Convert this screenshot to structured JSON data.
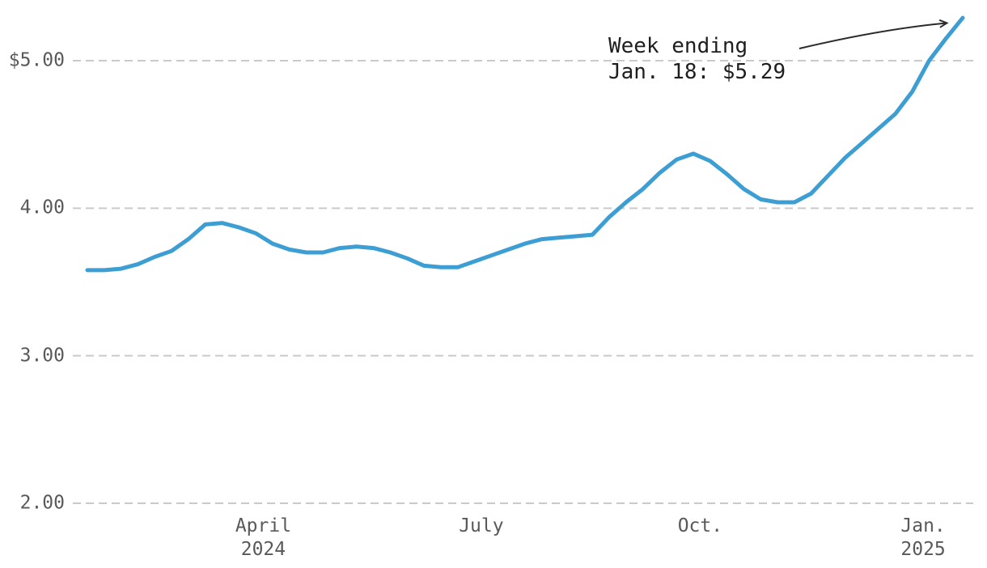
{
  "chart_data": {
    "type": "line",
    "title": "",
    "grid": "dashed-horizontal",
    "legend": "none",
    "ylim": [
      1.75,
      5.35
    ],
    "y_ticks": [
      {
        "label": "$5.00",
        "value": 5.0
      },
      {
        "label": "4.00",
        "value": 4.0
      },
      {
        "label": "3.00",
        "value": 3.0
      },
      {
        "label": "2.00",
        "value": 2.0
      }
    ],
    "x_ticks": [
      {
        "label": "April",
        "sublabel": "2024",
        "pos": 10.45
      },
      {
        "label": "July",
        "sublabel": "",
        "pos": 23.4
      },
      {
        "label": "Oct.",
        "sublabel": "",
        "pos": 36.4
      },
      {
        "label": "Jan.",
        "sublabel": "2025",
        "pos": 49.65
      }
    ],
    "values": [
      3.58,
      3.58,
      3.59,
      3.62,
      3.67,
      3.71,
      3.79,
      3.89,
      3.9,
      3.87,
      3.83,
      3.76,
      3.72,
      3.7,
      3.7,
      3.73,
      3.74,
      3.73,
      3.7,
      3.66,
      3.61,
      3.6,
      3.6,
      3.64,
      3.68,
      3.72,
      3.76,
      3.79,
      3.8,
      3.81,
      3.82,
      3.94,
      4.04,
      4.13,
      4.24,
      4.33,
      4.37,
      4.32,
      4.23,
      4.13,
      4.06,
      4.04,
      4.04,
      4.1,
      4.22,
      4.34,
      4.44,
      4.54,
      4.64,
      4.79,
      5.0,
      5.15,
      5.29
    ],
    "last_point_value": 5.29,
    "annotation": {
      "line1": "Week ending",
      "line2": "Jan. 18: $5.29"
    },
    "colors": {
      "line": "#3d9ed3",
      "grid": "#cacaca",
      "tick_text": "#59595b",
      "annotation_text": "#1e1e1e",
      "arrow": "#2b2b2b"
    }
  }
}
